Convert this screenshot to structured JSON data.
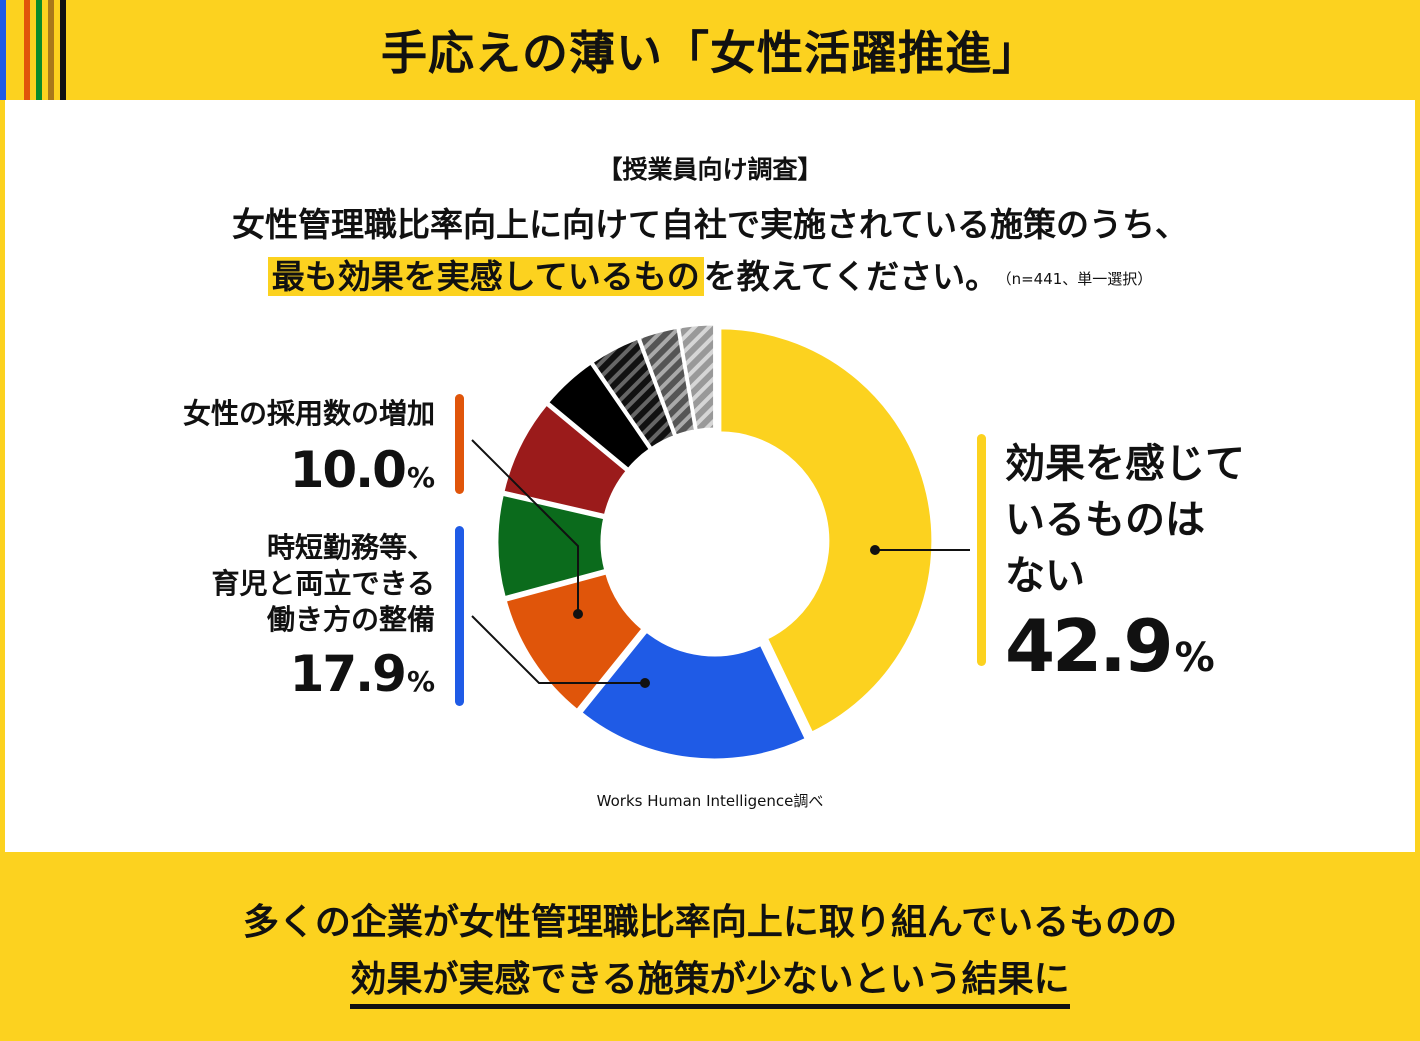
{
  "header": {
    "title": "手応えの薄い「女性活躍推進」",
    "stripe_colors": [
      "#1f5be6",
      "#fcd21f",
      "#e0550a",
      "#0a8a2a",
      "#a9791a",
      "#111111"
    ]
  },
  "survey": {
    "tag": "【授業員向け調査】",
    "question_line1": "女性管理職比率向上に向けて自社で実施されている施策のうち、",
    "question_highlight": "最も効果を実感しているもの",
    "question_rest": "を教えてください。",
    "note": "（n=441、単一選択）"
  },
  "labels": {
    "none": {
      "name_lines": [
        "効果を感じて",
        "いるものは",
        "ない"
      ],
      "value": "42.9",
      "unit": "%"
    },
    "worktime": {
      "name_lines": [
        "時短勤務等、",
        "育児と両立できる",
        "働き方の整備"
      ],
      "value": "17.9",
      "unit": "%"
    },
    "hiring": {
      "name_lines": [
        "女性の採用数の増加"
      ],
      "value": "10.0",
      "unit": "%"
    }
  },
  "source": "Works Human Intelligence調べ",
  "conclusion": {
    "line1": "多くの企業が女性管理職比率向上に取り組んでいるものの",
    "line2": "効果が実感できる施策が少ないという結果に"
  },
  "chart_data": {
    "type": "pie",
    "donut": true,
    "total_respondents": 441,
    "slices": [
      {
        "label": "効果を感じているものはない",
        "value": 42.9,
        "color": "#fcd21f",
        "pattern": "solid"
      },
      {
        "label": "時短勤務等、育児と両立できる働き方の整備",
        "value": 17.9,
        "color": "#1f5be6",
        "pattern": "solid"
      },
      {
        "label": "女性の採用数の増加",
        "value": 10.0,
        "color": "#e0550a",
        "pattern": "solid"
      },
      {
        "label": "",
        "value": 7.8,
        "color": "#0b6b1c",
        "pattern": "solid"
      },
      {
        "label": "",
        "value": 7.4,
        "color": "#9b1b1b",
        "pattern": "solid"
      },
      {
        "label": "",
        "value": 4.4,
        "color": "#000000",
        "pattern": "solid"
      },
      {
        "label": "",
        "value": 3.9,
        "color": "#111111",
        "pattern": "stripe-dark"
      },
      {
        "label": "",
        "value": 3.0,
        "color": "#555555",
        "pattern": "stripe-mid"
      },
      {
        "label": "",
        "value": 2.7,
        "color": "#9a9a9a",
        "pattern": "stripe-light"
      }
    ]
  }
}
